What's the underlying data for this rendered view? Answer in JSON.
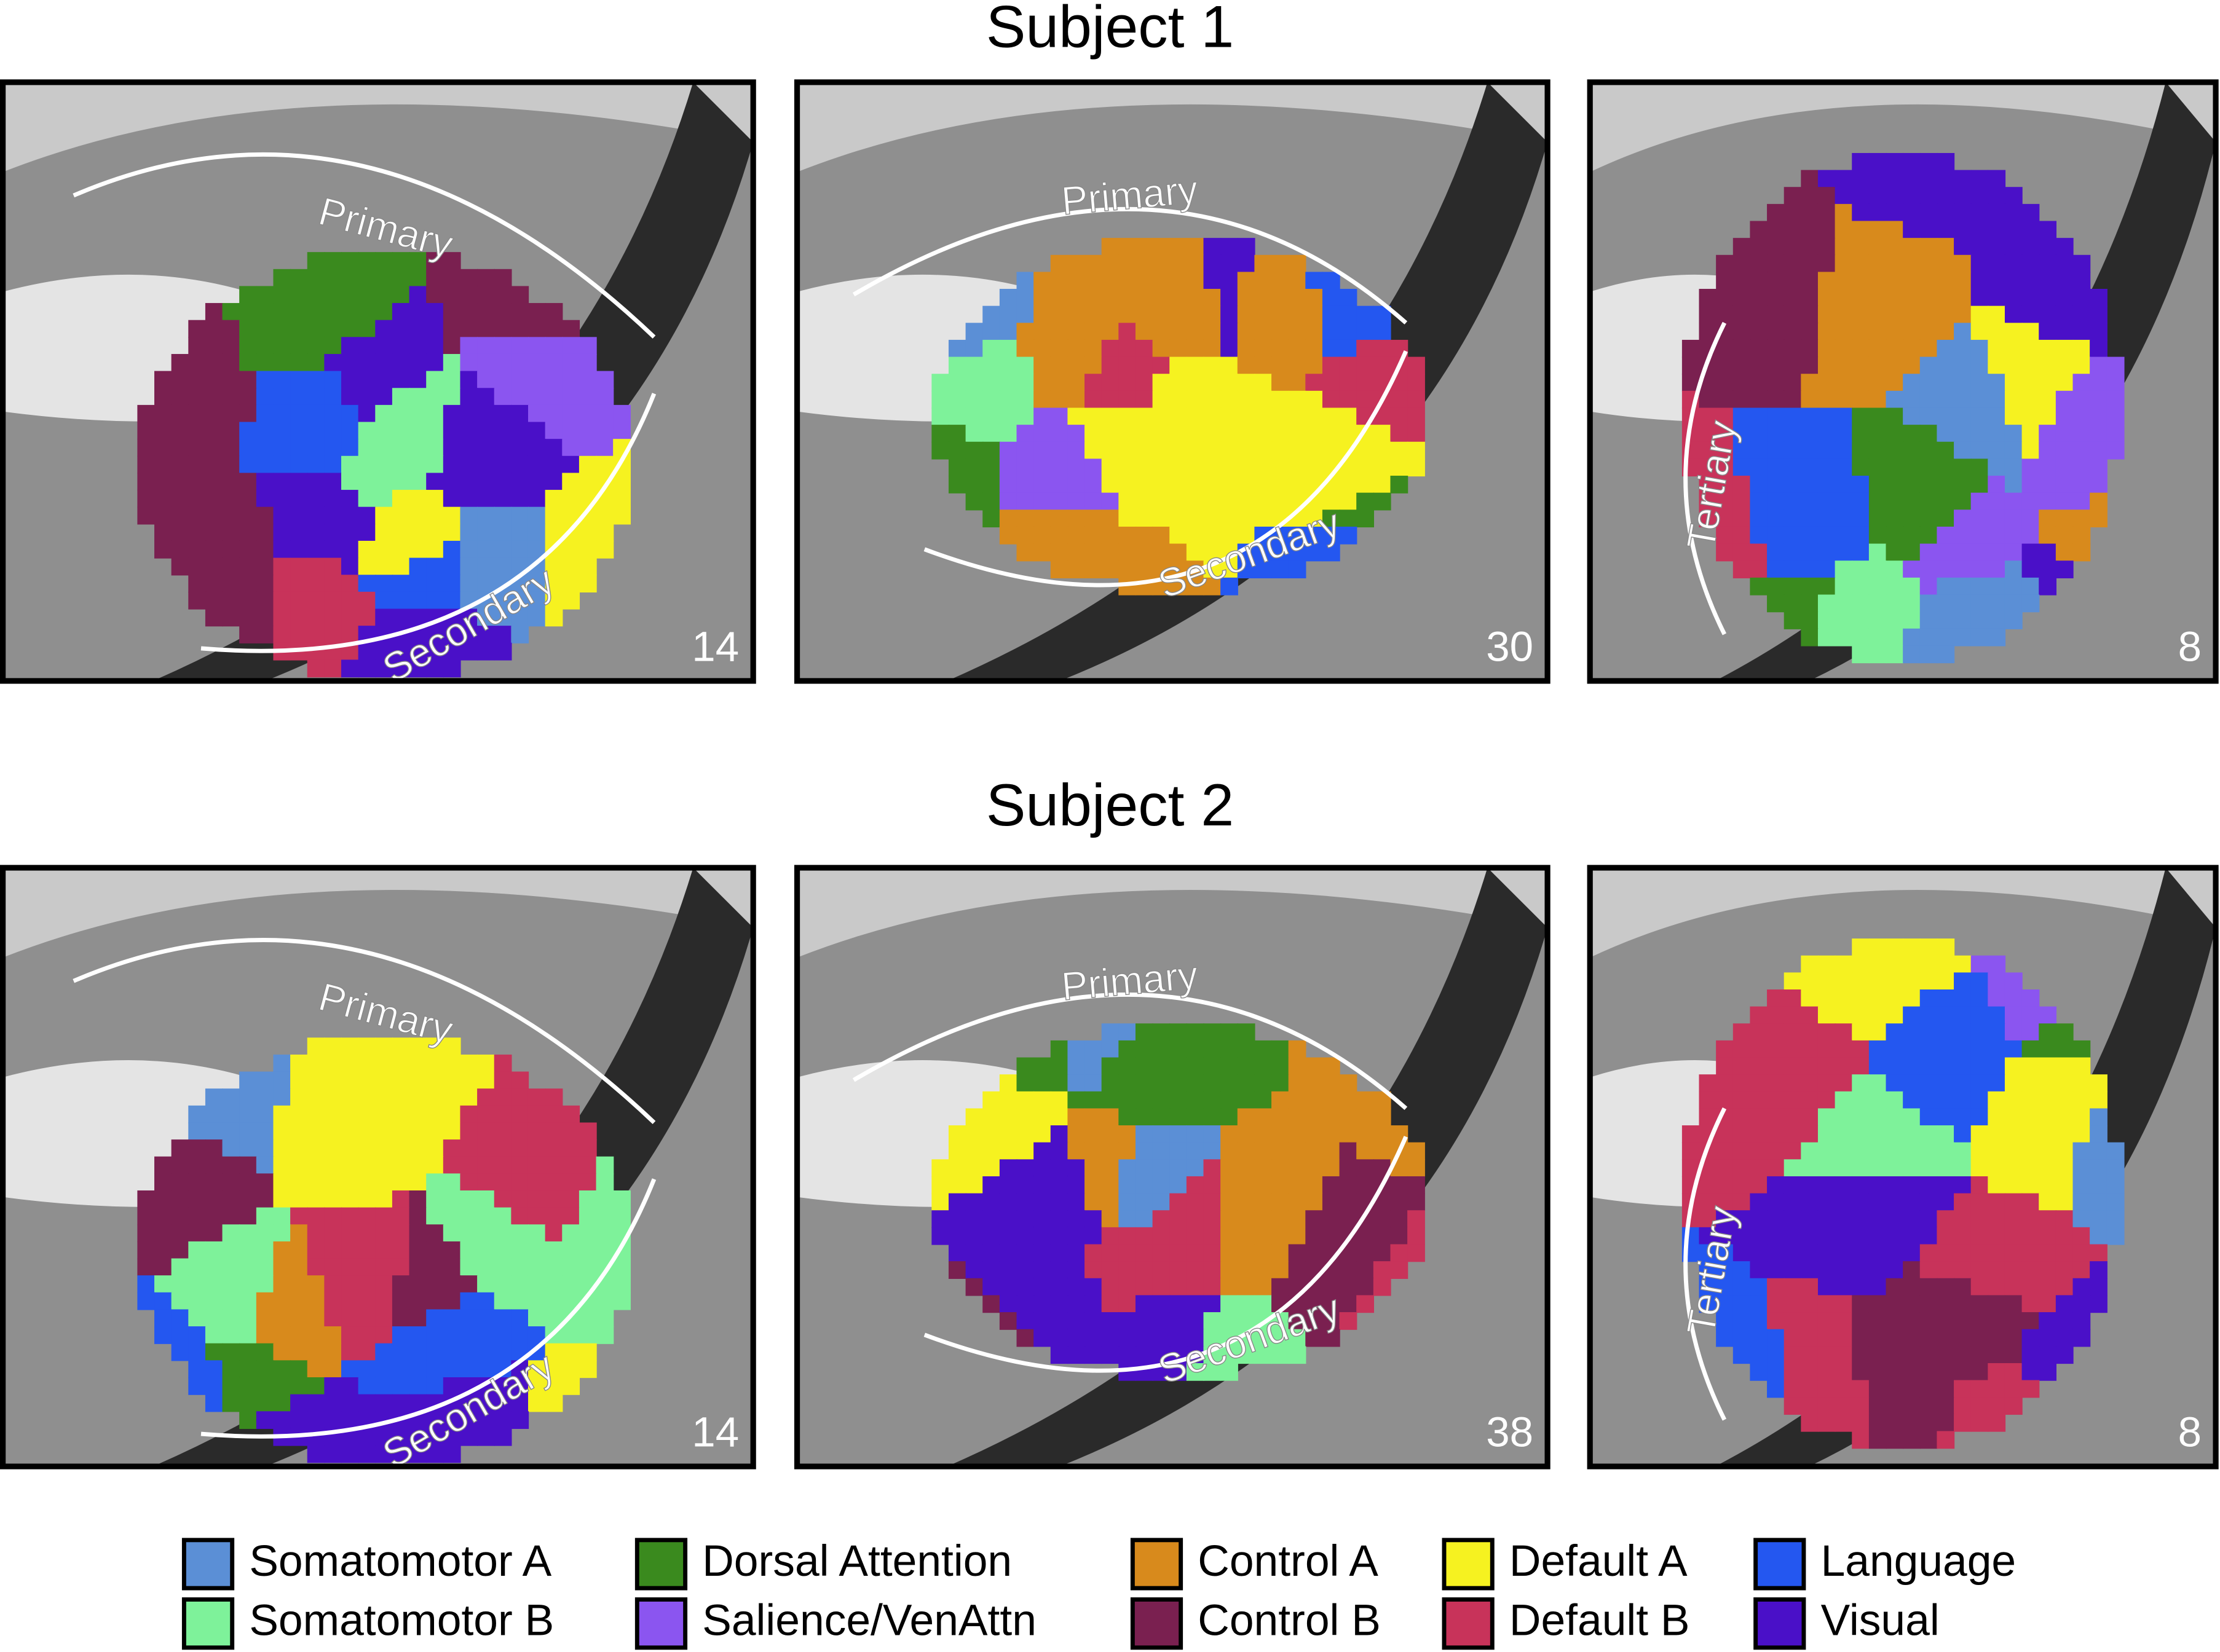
{
  "rows": [
    {
      "title": "Subject 1",
      "panels": [
        {
          "labels": [
            "Primary",
            "Secondary"
          ],
          "slice": "14"
        },
        {
          "labels": [
            "Primary",
            "Secondary"
          ],
          "slice": "30"
        },
        {
          "labels": [
            "Tertiary"
          ],
          "slice": "8"
        }
      ]
    },
    {
      "title": "Subject 2",
      "panels": [
        {
          "labels": [
            "Primary",
            "Secondary"
          ],
          "slice": "14"
        },
        {
          "labels": [
            "Primary",
            "Secondary"
          ],
          "slice": "38"
        },
        {
          "labels": [
            "Tertiary"
          ],
          "slice": "8"
        }
      ]
    }
  ],
  "legend": [
    {
      "label": "Somatomotor A",
      "color": "#5b8fd6"
    },
    {
      "label": "Somatomotor B",
      "color": "#7ef29a"
    },
    {
      "label": "Dorsal Attention",
      "color": "#3a8a1e"
    },
    {
      "label": "Salience/VenAttn",
      "color": "#8b55f0"
    },
    {
      "label": "Control A",
      "color": "#d88a1c"
    },
    {
      "label": "Control B",
      "color": "#7a2050"
    },
    {
      "label": "Default A",
      "color": "#f6f220"
    },
    {
      "label": "Default B",
      "color": "#c8335a"
    },
    {
      "label": "Language",
      "color": "#2457f0"
    },
    {
      "label": "Visual",
      "color": "#4a10c8"
    }
  ]
}
